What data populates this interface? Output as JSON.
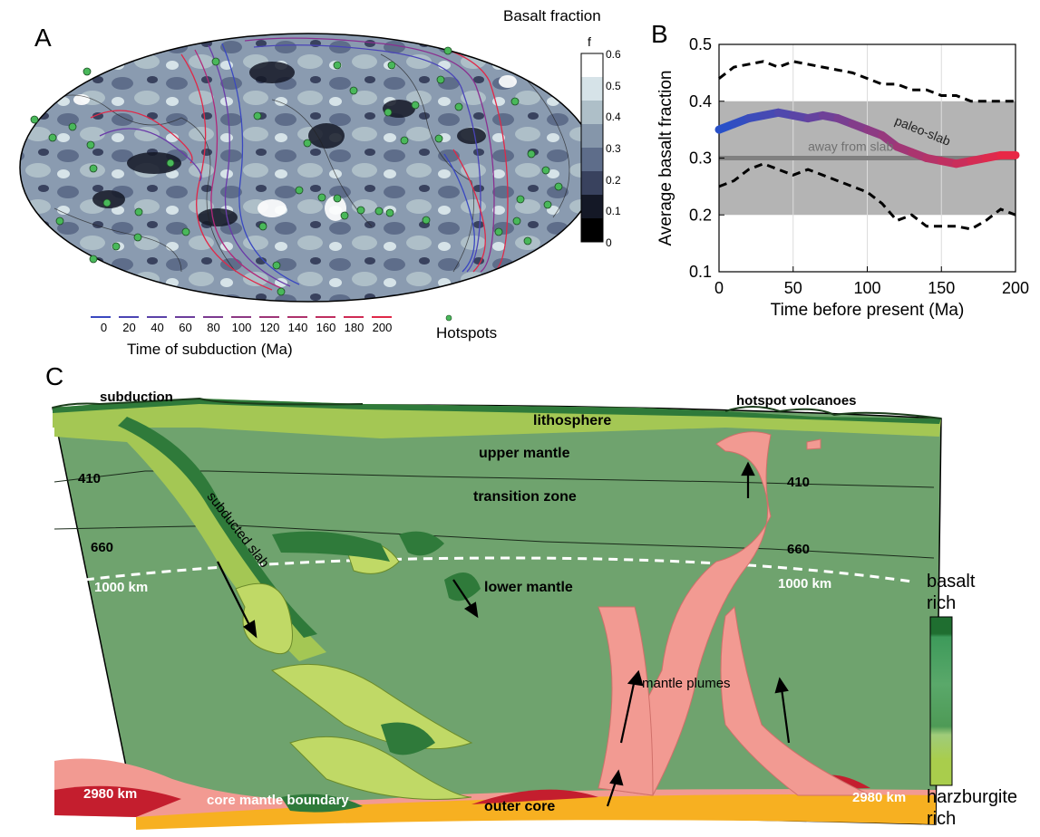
{
  "panel_a": {
    "letter": "A",
    "colorbar": {
      "title": "Basalt fraction",
      "symbol": "f",
      "ticks": [
        "0.6",
        "0.5",
        "0.4",
        "0.3",
        "0.2",
        "0.1",
        "0"
      ],
      "colors": [
        "#ffffff",
        "#d6e3e8",
        "#aebfc8",
        "#8596aa",
        "#5e6d8a",
        "#39425e",
        "#141826",
        "#000000"
      ]
    },
    "legend_ticks": [
      "0",
      "20",
      "40",
      "60",
      "80",
      "100",
      "120",
      "140",
      "160",
      "180",
      "200"
    ],
    "legend_label": "Time of subduction (Ma)",
    "hotspots_label": "Hotspots",
    "hotspot_color": "#49b85a"
  },
  "panel_b": {
    "letter": "B",
    "chart_data": {
      "type": "line",
      "xlabel": "Time before present (Ma)",
      "ylabel": "Average basalt fraction",
      "xlim": [
        0,
        200
      ],
      "ylim": [
        0.1,
        0.5
      ],
      "xticks": [
        "0",
        "50",
        "100",
        "150",
        "200"
      ],
      "yticks": [
        "0.1",
        "0.2",
        "0.3",
        "0.4",
        "0.5"
      ],
      "band": [
        0.2,
        0.4
      ],
      "away_value": 0.3,
      "away_label": "away from slab",
      "series_label": "paleo-slab",
      "series": [
        {
          "name": "paleo-slab",
          "x": [
            0,
            10,
            20,
            30,
            40,
            50,
            60,
            70,
            80,
            90,
            100,
            110,
            120,
            130,
            140,
            150,
            160,
            170,
            180,
            190,
            200
          ],
          "values": [
            0.35,
            0.36,
            0.37,
            0.375,
            0.38,
            0.375,
            0.37,
            0.375,
            0.37,
            0.36,
            0.35,
            0.34,
            0.32,
            0.31,
            0.3,
            0.295,
            0.29,
            0.295,
            0.3,
            0.305,
            0.305
          ]
        },
        {
          "name": "upper",
          "x": [
            0,
            10,
            20,
            30,
            40,
            50,
            60,
            70,
            80,
            90,
            100,
            110,
            120,
            130,
            140,
            150,
            160,
            170,
            180,
            190,
            200
          ],
          "values": [
            0.44,
            0.46,
            0.465,
            0.47,
            0.46,
            0.47,
            0.465,
            0.46,
            0.455,
            0.45,
            0.44,
            0.43,
            0.43,
            0.42,
            0.42,
            0.41,
            0.41,
            0.4,
            0.4,
            0.4,
            0.4
          ]
        },
        {
          "name": "lower",
          "x": [
            0,
            10,
            20,
            30,
            40,
            50,
            60,
            70,
            80,
            90,
            100,
            110,
            120,
            130,
            140,
            150,
            160,
            170,
            180,
            190,
            200
          ],
          "values": [
            0.25,
            0.26,
            0.28,
            0.29,
            0.28,
            0.27,
            0.28,
            0.27,
            0.26,
            0.25,
            0.24,
            0.22,
            0.19,
            0.2,
            0.18,
            0.18,
            0.18,
            0.175,
            0.19,
            0.21,
            0.2
          ]
        }
      ],
      "grid": true
    }
  },
  "panel_c": {
    "letter": "C",
    "subduction": "subduction",
    "hotspot_volcanoes": "hotspot volcanoes",
    "lithosphere": "lithosphere",
    "upper_mantle": "upper mantle",
    "transition_zone": "transition zone",
    "lower_mantle": "lower mantle",
    "subducted_slab": "subducted slab",
    "d410_left": "410",
    "d410_right": "410",
    "d660_left": "660",
    "d660_right": "660",
    "km1000_left": "1000 km",
    "km1000_right": "1000 km",
    "mantle_plumes": "mantle plumes",
    "km2980_left": "2980 km",
    "km2980_right": "2980 km",
    "cmb": "core mantle boundary",
    "outer_core": "outer core",
    "scale_top": "basalt\nrich",
    "scale_top_1": "basalt",
    "scale_top_2": "rich",
    "scale_bottom_1": "harzburgite",
    "scale_bottom_2": "rich"
  }
}
